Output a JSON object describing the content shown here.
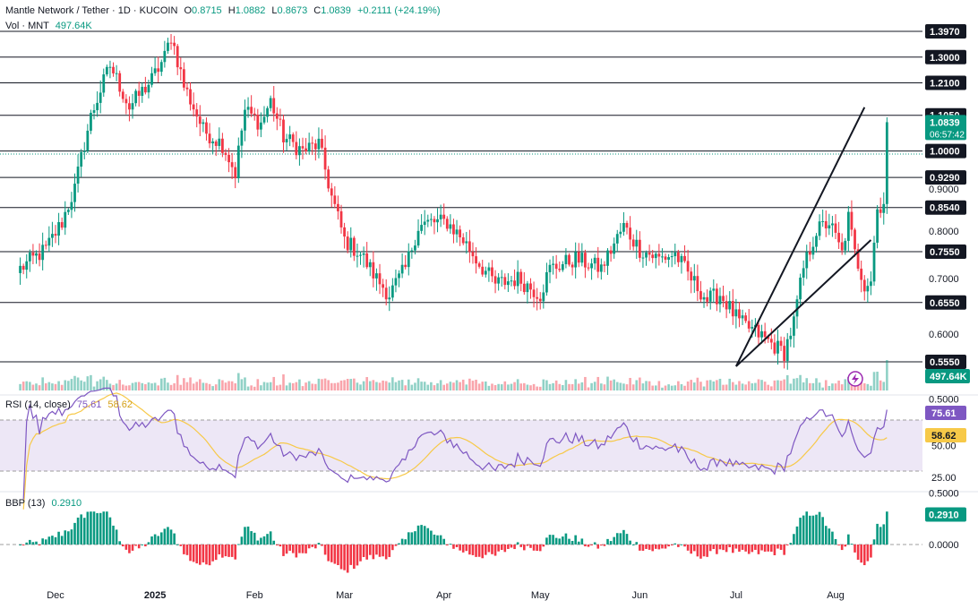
{
  "header": {
    "symbol": "Mantle Network / Tether",
    "interval": "1D",
    "exchange": "KUCOIN",
    "open_label": "O",
    "open": "0.8715",
    "high_label": "H",
    "high": "1.0882",
    "low_label": "L",
    "low": "0.8673",
    "close_label": "C",
    "close": "1.0839",
    "change": "+0.2111 (+24.19%)",
    "volume_label": "Vol · MNT",
    "volume": "497.64K"
  },
  "price_badge": {
    "value": "1.0839",
    "countdown": "06:57:42"
  },
  "volume_badge": "497.64K",
  "rsi": {
    "label": "RSI (14, close)",
    "value": "75.61",
    "ma": "58.62",
    "upper": 70,
    "lower": 30,
    "ticks": [
      "50.00",
      "25.00"
    ]
  },
  "bbp": {
    "label": "BBP (13)",
    "value": "0.2910",
    "ticks": [
      "0.5000",
      "0.0000"
    ]
  },
  "colors": {
    "up": "#089981",
    "down": "#f23645",
    "rsi_line": "#7e57c2",
    "rsi_ma": "#f7c948",
    "rsi_band": "#ede7f6",
    "axis_text": "#131722"
  },
  "chart_data": {
    "type": "candlestick",
    "x_labels": [
      "Dec",
      "2025",
      "Feb",
      "Mar",
      "Apr",
      "May",
      "Jun",
      "Jul",
      "Aug"
    ],
    "y_ticks": [
      "0.9000",
      "0.8000",
      "0.7000",
      "0.6000",
      "0.5000"
    ],
    "horizontal_levels": [
      "1.3970",
      "1.3000",
      "1.2100",
      "1.1050",
      "1.0000",
      "0.9290",
      "0.8540",
      "0.7550",
      "0.6550",
      "0.5550"
    ],
    "ylim": [
      0.48,
      1.42
    ],
    "scale": "log",
    "trendlines": [
      {
        "from": [
          "2025-07-01",
          0.548
        ],
        "to": [
          "2025-08-10",
          1.13
        ]
      },
      {
        "from": [
          "2025-07-01",
          0.548
        ],
        "to": [
          "2025-08-12",
          0.78
        ]
      }
    ],
    "anchors": [
      {
        "date": "2024-11-20",
        "close": 0.72
      },
      {
        "date": "2024-11-28",
        "close": 0.76
      },
      {
        "date": "2024-12-03",
        "close": 0.82
      },
      {
        "date": "2024-12-07",
        "close": 0.9
      },
      {
        "date": "2024-12-12",
        "close": 1.1
      },
      {
        "date": "2024-12-18",
        "close": 1.27
      },
      {
        "date": "2024-12-24",
        "close": 1.13
      },
      {
        "date": "2024-12-31",
        "close": 1.22
      },
      {
        "date": "2025-01-04",
        "close": 1.3
      },
      {
        "date": "2025-01-06",
        "close": 1.38
      },
      {
        "date": "2025-01-10",
        "close": 1.2
      },
      {
        "date": "2025-01-16",
        "close": 1.06
      },
      {
        "date": "2025-01-22",
        "close": 1.02
      },
      {
        "date": "2025-01-26",
        "close": 0.94
      },
      {
        "date": "2025-01-29",
        "close": 1.12
      },
      {
        "date": "2025-02-03",
        "close": 1.08
      },
      {
        "date": "2025-02-06",
        "close": 1.15
      },
      {
        "date": "2025-02-10",
        "close": 1.04
      },
      {
        "date": "2025-02-16",
        "close": 1.0
      },
      {
        "date": "2025-02-21",
        "close": 1.02
      },
      {
        "date": "2025-02-25",
        "close": 0.88
      },
      {
        "date": "2025-03-01",
        "close": 0.78
      },
      {
        "date": "2025-03-06",
        "close": 0.75
      },
      {
        "date": "2025-03-11",
        "close": 0.7
      },
      {
        "date": "2025-03-15",
        "close": 0.67
      },
      {
        "date": "2025-03-20",
        "close": 0.72
      },
      {
        "date": "2025-03-24",
        "close": 0.81
      },
      {
        "date": "2025-03-28",
        "close": 0.82
      },
      {
        "date": "2025-04-02",
        "close": 0.82
      },
      {
        "date": "2025-04-07",
        "close": 0.78
      },
      {
        "date": "2025-04-12",
        "close": 0.73
      },
      {
        "date": "2025-04-17",
        "close": 0.69
      },
      {
        "date": "2025-04-24",
        "close": 0.7
      },
      {
        "date": "2025-05-01",
        "close": 0.67
      },
      {
        "date": "2025-05-04",
        "close": 0.72
      },
      {
        "date": "2025-05-12",
        "close": 0.74
      },
      {
        "date": "2025-05-20",
        "close": 0.72
      },
      {
        "date": "2025-05-27",
        "close": 0.81
      },
      {
        "date": "2025-06-01",
        "close": 0.76
      },
      {
        "date": "2025-06-07",
        "close": 0.74
      },
      {
        "date": "2025-06-12",
        "close": 0.75
      },
      {
        "date": "2025-06-17",
        "close": 0.7
      },
      {
        "date": "2025-06-22",
        "close": 0.66
      },
      {
        "date": "2025-06-26",
        "close": 0.67
      },
      {
        "date": "2025-07-02",
        "close": 0.62
      },
      {
        "date": "2025-07-08",
        "close": 0.6
      },
      {
        "date": "2025-07-13",
        "close": 0.58
      },
      {
        "date": "2025-07-16",
        "close": 0.57
      },
      {
        "date": "2025-07-19",
        "close": 0.62
      },
      {
        "date": "2025-07-22",
        "close": 0.72
      },
      {
        "date": "2025-07-26",
        "close": 0.8
      },
      {
        "date": "2025-07-30",
        "close": 0.82
      },
      {
        "date": "2025-08-03",
        "close": 0.75
      },
      {
        "date": "2025-08-05",
        "close": 0.83
      },
      {
        "date": "2025-08-07",
        "close": 0.75
      },
      {
        "date": "2025-08-10",
        "close": 0.69
      },
      {
        "date": "2025-08-12",
        "close": 0.7
      },
      {
        "date": "2025-08-14",
        "close": 0.85
      },
      {
        "date": "2025-08-16",
        "close": 0.87
      },
      {
        "date": "2025-08-17",
        "close": 1.0839
      }
    ]
  }
}
